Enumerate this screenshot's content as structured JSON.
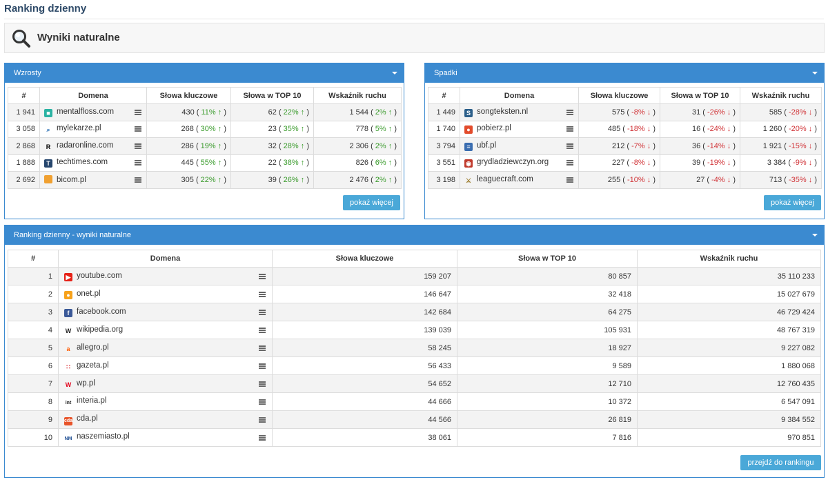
{
  "page_title": "Ranking dzienny",
  "search_section": {
    "label": "Wyniki naturalne",
    "icon": "magnifier-icon"
  },
  "wzrosty": {
    "title": "Wzrosty",
    "headers": [
      "#",
      "Domena",
      "Słowa kluczowe",
      "Słowa w TOP 10",
      "Wskaźnik ruchu"
    ],
    "rows": [
      {
        "rank": "1 941",
        "domain": "mentalfloss.com",
        "icon": "mentalfloss-favicon",
        "kw": "430",
        "kw_pct": "11%",
        "top10": "62",
        "top10_pct": "22%",
        "traffic": "1 544",
        "traffic_pct": "2%"
      },
      {
        "rank": "3 058",
        "domain": "mylekarze.pl",
        "icon": "mylekarze-favicon",
        "kw": "268",
        "kw_pct": "30%",
        "top10": "23",
        "top10_pct": "35%",
        "traffic": "778",
        "traffic_pct": "5%"
      },
      {
        "rank": "2 868",
        "domain": "radaronline.com",
        "icon": "radaronline-favicon",
        "kw": "286",
        "kw_pct": "19%",
        "top10": "32",
        "top10_pct": "28%",
        "traffic": "2 306",
        "traffic_pct": "2%"
      },
      {
        "rank": "1 888",
        "domain": "techtimes.com",
        "icon": "techtimes-favicon",
        "kw": "445",
        "kw_pct": "55%",
        "top10": "22",
        "top10_pct": "38%",
        "traffic": "826",
        "traffic_pct": "6%"
      },
      {
        "rank": "2 692",
        "domain": "bicom.pl",
        "icon": "bicom-favicon",
        "kw": "305",
        "kw_pct": "22%",
        "top10": "39",
        "top10_pct": "26%",
        "traffic": "2 476",
        "traffic_pct": "2%"
      }
    ],
    "button": "pokaż więcej"
  },
  "spadki": {
    "title": "Spadki",
    "headers": [
      "#",
      "Domena",
      "Słowa kluczowe",
      "Słowa w TOP 10",
      "Wskaźnik ruchu"
    ],
    "rows": [
      {
        "rank": "1 449",
        "domain": "songteksten.nl",
        "icon": "songteksten-favicon",
        "kw": "575",
        "kw_pct": "-8%",
        "top10": "31",
        "top10_pct": "-26%",
        "traffic": "585",
        "traffic_pct": "-28%"
      },
      {
        "rank": "1 740",
        "domain": "pobierz.pl",
        "icon": "pobierz-favicon",
        "kw": "485",
        "kw_pct": "-18%",
        "top10": "16",
        "top10_pct": "-24%",
        "traffic": "1 260",
        "traffic_pct": "-20%"
      },
      {
        "rank": "3 794",
        "domain": "ubf.pl",
        "icon": "ubf-favicon",
        "kw": "212",
        "kw_pct": "-7%",
        "top10": "36",
        "top10_pct": "-14%",
        "traffic": "1 921",
        "traffic_pct": "-15%"
      },
      {
        "rank": "3 551",
        "domain": "grydladziewczyn.org",
        "icon": "grydladziewczyn-favicon",
        "kw": "227",
        "kw_pct": "-8%",
        "top10": "39",
        "top10_pct": "-19%",
        "traffic": "3 384",
        "traffic_pct": "-9%"
      },
      {
        "rank": "3 198",
        "domain": "leaguecraft.com",
        "icon": "leaguecraft-favicon",
        "kw": "255",
        "kw_pct": "-10%",
        "top10": "27",
        "top10_pct": "-4%",
        "traffic": "713",
        "traffic_pct": "-35%"
      }
    ],
    "button": "pokaż więcej"
  },
  "ranking": {
    "title": "Ranking dzienny - wyniki naturalne",
    "headers": [
      "#",
      "Domena",
      "Słowa kluczowe",
      "Słowa w TOP 10",
      "Wskaźnik ruchu"
    ],
    "rows": [
      {
        "rank": "1",
        "domain": "youtube.com",
        "icon": "youtube-favicon",
        "kw": "159 207",
        "top10": "80 857",
        "traffic": "35 110 233"
      },
      {
        "rank": "2",
        "domain": "onet.pl",
        "icon": "onet-favicon",
        "kw": "146 647",
        "top10": "32 418",
        "traffic": "15 027 679"
      },
      {
        "rank": "3",
        "domain": "facebook.com",
        "icon": "facebook-favicon",
        "kw": "142 684",
        "top10": "64 275",
        "traffic": "46 729 424"
      },
      {
        "rank": "4",
        "domain": "wikipedia.org",
        "icon": "wikipedia-favicon",
        "kw": "139 039",
        "top10": "105 931",
        "traffic": "48 767 319"
      },
      {
        "rank": "5",
        "domain": "allegro.pl",
        "icon": "allegro-favicon",
        "kw": "58 245",
        "top10": "18 927",
        "traffic": "9 227 082"
      },
      {
        "rank": "6",
        "domain": "gazeta.pl",
        "icon": "gazeta-favicon",
        "kw": "56 433",
        "top10": "9 589",
        "traffic": "1 880 068"
      },
      {
        "rank": "7",
        "domain": "wp.pl",
        "icon": "wp-favicon",
        "kw": "54 652",
        "top10": "12 710",
        "traffic": "12 760 435"
      },
      {
        "rank": "8",
        "domain": "interia.pl",
        "icon": "interia-favicon",
        "kw": "44 666",
        "top10": "10 372",
        "traffic": "6 547 091"
      },
      {
        "rank": "9",
        "domain": "cda.pl",
        "icon": "cda-favicon",
        "kw": "44 566",
        "top10": "26 819",
        "traffic": "9 384 552"
      },
      {
        "rank": "10",
        "domain": "naszemiasto.pl",
        "icon": "naszemiasto-favicon",
        "kw": "38 061",
        "top10": "7 816",
        "traffic": "970 851"
      }
    ],
    "button": "przejdź do rankingu"
  },
  "colors": {
    "panel_blue": "#3b8ad0",
    "button_blue": "#4aa8d8",
    "up_green": "#3a9b2c",
    "down_red": "#d13438"
  }
}
